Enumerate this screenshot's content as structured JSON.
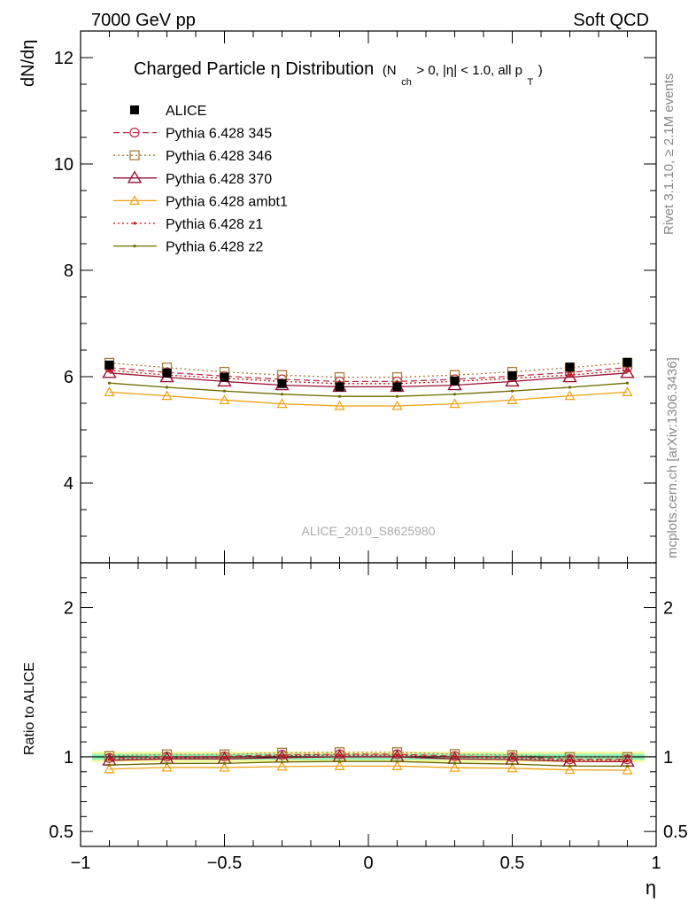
{
  "header": {
    "left": "7000 GeV pp",
    "right": "Soft QCD"
  },
  "side_labels": {
    "rivet": "Rivet 3.1.10, ≥ 2.1M events",
    "mcplots": "mcplots.cern.ch [arXiv:1306.3436]"
  },
  "colors": {
    "ALICE": "#000000",
    "p345": "#c0304a",
    "p346": "#a67c3a",
    "p370": "#9a1030",
    "ambt1": "#f0a010",
    "z1": "#cc1010",
    "z2": "#6b6b00",
    "band_inner": "#8cf0b4",
    "band_outer": "#f8f8a0"
  },
  "chart_data": {
    "type": "line",
    "title": "Charged Particle η Distribution",
    "title_suffix": "(N",
    "title_suffix_sub": "ch",
    "title_suffix_rest": " > 0, |η| < 1.0, all p",
    "title_suffix_sub2": "T",
    "title_suffix_close": ")",
    "watermark": "ALICE_2010_S8625980",
    "xlabel": "η",
    "ylabel_main": "dN/dη",
    "ylabel_ratio": "Ratio to ALICE",
    "xlim": [
      -1.0,
      1.0
    ],
    "ylim_main": [
      2.5,
      12.5
    ],
    "ylim_ratio": [
      0.4,
      2.3
    ],
    "x_ticks": [
      {
        "v": -1,
        "label": "−1"
      },
      {
        "v": -0.5,
        "label": "−0.5"
      },
      {
        "v": 0,
        "label": "0"
      },
      {
        "v": 0.5,
        "label": "0.5"
      },
      {
        "v": 1,
        "label": "1"
      }
    ],
    "y_ticks_main": [
      {
        "v": 4,
        "label": "4"
      },
      {
        "v": 6,
        "label": "6"
      },
      {
        "v": 8,
        "label": "8"
      },
      {
        "v": 10,
        "label": "10"
      },
      {
        "v": 12,
        "label": "12"
      }
    ],
    "y_ticks_ratio": [
      {
        "v": 0.5,
        "label": "0.5"
      },
      {
        "v": 1,
        "label": "1"
      },
      {
        "v": 2,
        "label": "2"
      }
    ],
    "x": [
      -0.9,
      -0.7,
      -0.5,
      -0.3,
      -0.1,
      0.1,
      0.3,
      0.5,
      0.7,
      0.9
    ],
    "series": [
      {
        "name": "ALICE",
        "key": "ALICE",
        "marker": "filled-square",
        "line": "none",
        "values": [
          6.22,
          6.07,
          5.99,
          5.87,
          5.81,
          5.81,
          5.92,
          6.02,
          6.18,
          6.27
        ]
      },
      {
        "name": "Pythia 6.428 345",
        "key": "p345",
        "marker": "open-circle",
        "line": "dashed",
        "values": [
          6.17,
          6.08,
          6.01,
          5.95,
          5.91,
          5.91,
          5.95,
          6.01,
          6.08,
          6.17
        ]
      },
      {
        "name": "Pythia 6.428 346",
        "key": "p346",
        "marker": "open-square",
        "line": "dotted",
        "values": [
          6.26,
          6.17,
          6.09,
          6.03,
          5.99,
          5.99,
          6.03,
          6.09,
          6.17,
          6.26
        ]
      },
      {
        "name": "Pythia 6.428 370",
        "key": "p370",
        "marker": "open-triangle",
        "line": "solid",
        "values": [
          6.07,
          5.99,
          5.91,
          5.84,
          5.81,
          5.81,
          5.84,
          5.91,
          5.99,
          6.07
        ]
      },
      {
        "name": "Pythia 6.428 ambt1",
        "key": "ambt1",
        "marker": "open-triangle-small",
        "line": "solid",
        "values": [
          5.71,
          5.64,
          5.56,
          5.49,
          5.45,
          5.45,
          5.49,
          5.56,
          5.64,
          5.71
        ]
      },
      {
        "name": "Pythia 6.428 z1",
        "key": "z1",
        "marker": "dot",
        "line": "dotted",
        "values": [
          6.12,
          6.03,
          5.97,
          5.91,
          5.87,
          5.87,
          5.91,
          5.97,
          6.03,
          6.12
        ]
      },
      {
        "name": "Pythia 6.428 z2",
        "key": "z2",
        "marker": "dot",
        "line": "solid",
        "values": [
          5.88,
          5.8,
          5.73,
          5.67,
          5.63,
          5.63,
          5.67,
          5.73,
          5.8,
          5.88
        ]
      }
    ],
    "ratio_band": {
      "inner": 0.02,
      "outer": 0.035
    },
    "legend_placement": "top-left",
    "grid": false
  }
}
